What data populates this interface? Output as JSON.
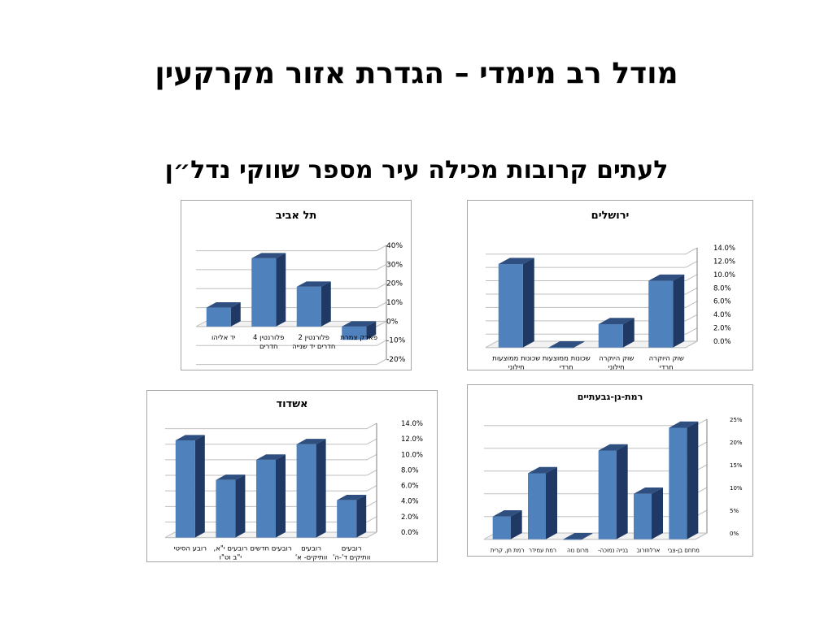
{
  "slide": {
    "title": "מודל רב מימדי – הגדרת אזור מקרקעין",
    "subtitle": "לעתים קרובות מכילה עיר מספר שווקי נדל״ן"
  },
  "colors": {
    "bar_front": "#4f81bd",
    "bar_side": "#1f3864",
    "bar_top": "#2e4f7f",
    "grid": "#7f7f7f"
  },
  "chart_data": [
    {
      "id": "tel-aviv",
      "type": "bar",
      "title": "תל אביב",
      "categories": [
        "פארק צמרת",
        "פלורנטין 2 חדרים יד שנייה",
        "פלורנטין 4 חדרים",
        "יד אליהו"
      ],
      "values": [
        -0.07,
        0.21,
        0.36,
        0.1
      ],
      "ylim": [
        -0.2,
        0.4
      ],
      "yticks": [
        "-20%",
        "-10%",
        "0%",
        "10%",
        "20%",
        "30%",
        "40%"
      ],
      "grid": true
    },
    {
      "id": "jerusalem",
      "type": "bar",
      "title": "ירושלים",
      "categories": [
        "שוק היוקרה חרדי",
        "שוק היוקרה חילוני",
        "שכונות ממוצעות חרדי",
        "שכונות ממוצעות חילוני"
      ],
      "values": [
        0.1,
        0.035,
        0.0,
        0.125
      ],
      "ylim": [
        0,
        0.14
      ],
      "yticks": [
        "0.0%",
        "2.0%",
        "4.0%",
        "6.0%",
        "8.0%",
        "10.0%",
        "12.0%",
        "14.0%"
      ],
      "grid": true
    },
    {
      "id": "ashdod",
      "type": "bar",
      "title": "אשדוד",
      "categories": [
        "רובעים וותיקים ד'-ה'",
        "רובעים וותיקים- א' ו-ב'",
        "רובעים חדשים",
        "רובעים י\"א, י\"ב וט\"ו",
        "רובע הסיטי"
      ],
      "values": [
        0.048,
        0.12,
        0.1,
        0.074,
        0.125
      ],
      "ylim": [
        0,
        0.14
      ],
      "yticks": [
        "0.0%",
        "2.0%",
        "4.0%",
        "6.0%",
        "8.0%",
        "10.0%",
        "12.0%",
        "14.0%"
      ],
      "grid": true
    },
    {
      "id": "ramat-gan",
      "type": "bar",
      "title": "רמת-גן-גבעתיים",
      "categories": [
        "מתחם בן-צבי",
        "ארלוזורוב",
        "בנייה נמוכה- ק.בורוכוב",
        "מרום נוה",
        "רמת עמידר",
        "רמת חן, קרית קריניצי"
      ],
      "values": [
        0.245,
        0.1,
        0.195,
        0.0,
        0.145,
        0.05
      ],
      "ylim": [
        0,
        0.25
      ],
      "yticks": [
        "0%",
        "5%",
        "10%",
        "15%",
        "20%",
        "25%"
      ],
      "grid": true
    }
  ]
}
